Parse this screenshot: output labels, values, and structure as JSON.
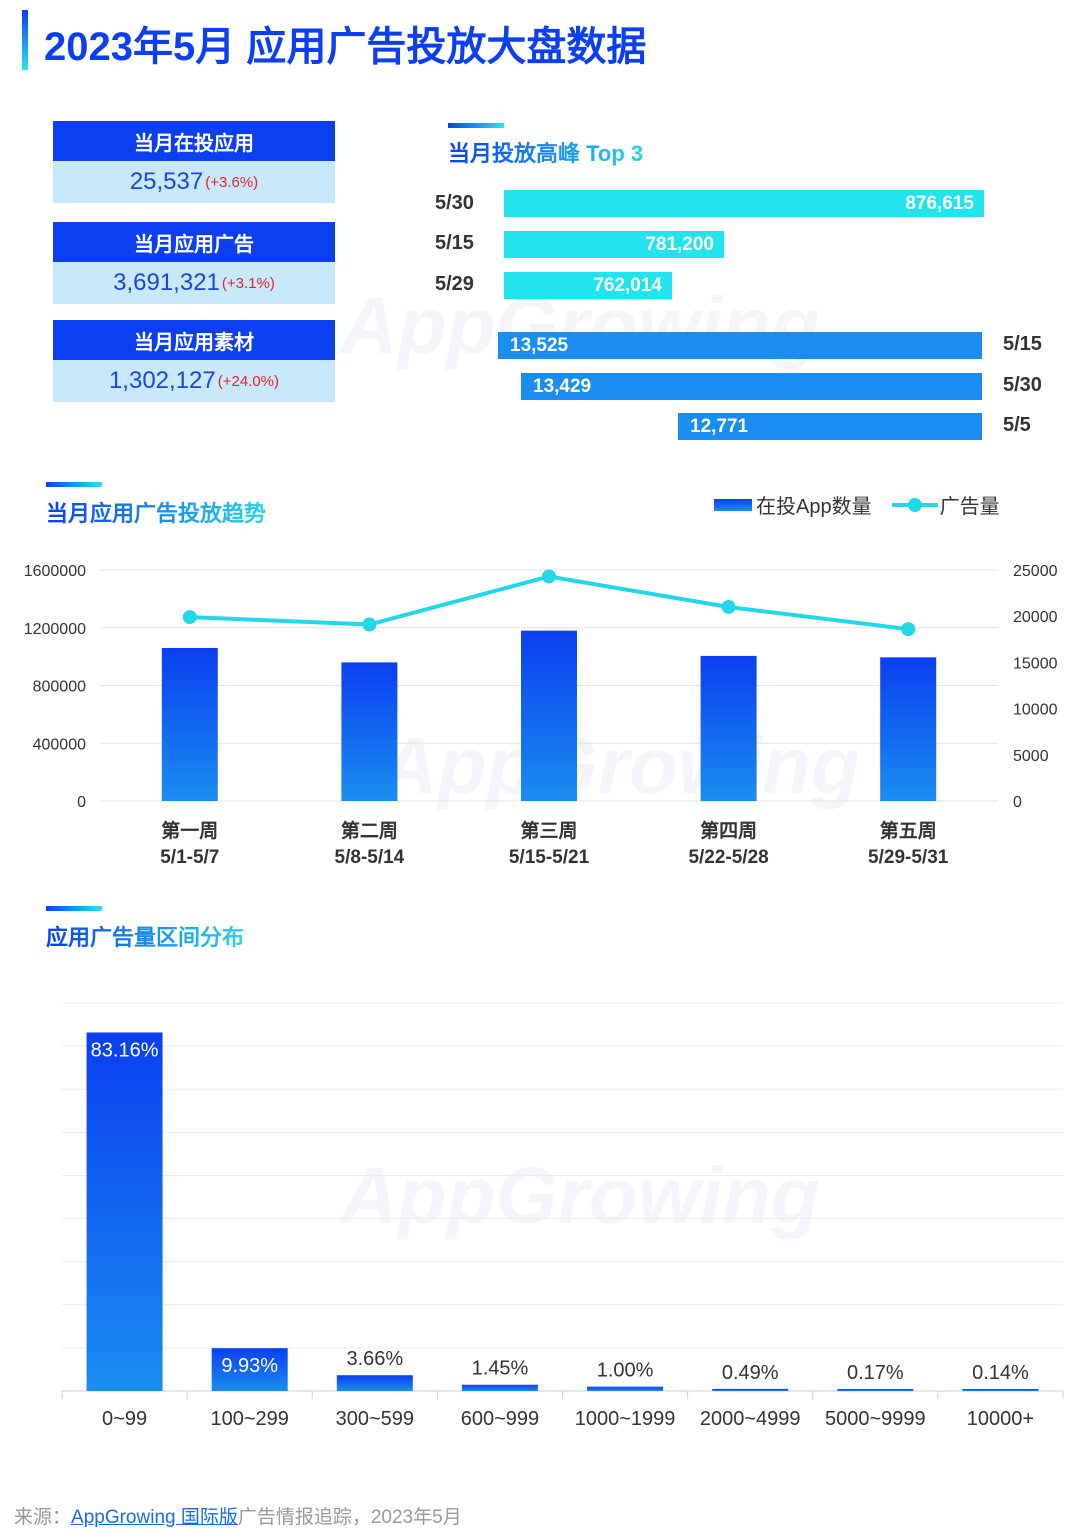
{
  "header": {
    "title": "2023年5月  应用广告投放大盘数据"
  },
  "colors": {
    "primary": "#0b3ff0",
    "bar_light": "#1a8df0",
    "cyan": "#22e4ec",
    "card_bg": "#c8e9fb",
    "increase": "#e8202a"
  },
  "stats": [
    {
      "label": "当月在投应用",
      "value": "25,537",
      "change": "(+3.6%)"
    },
    {
      "label": "当月应用广告",
      "value": "3,691,321",
      "change": "(+3.1%)"
    },
    {
      "label": "当月应用素材",
      "value": "1,302,127",
      "change": "(+24.0%)"
    }
  ],
  "watermark": "AppGrowing",
  "footer": {
    "prefix": "来源：",
    "link": "AppGrowing 国际版",
    "suffix": "广告情报追踪，2023年5月"
  },
  "chart_data": [
    {
      "type": "bar",
      "orientation": "horizontal",
      "title": "当月投放高峰 Top 3",
      "series": [
        {
          "categories": [
            "5/30",
            "5/15",
            "5/29"
          ],
          "values": [
            876615,
            781200,
            762014
          ],
          "labels": [
            "876,615",
            "781,200",
            "762,014"
          ],
          "color": "#22e4ec"
        },
        {
          "categories": [
            "5/15",
            "5/30",
            "5/5"
          ],
          "values": [
            13525,
            13429,
            12771
          ],
          "labels": [
            "13,525",
            "13,429",
            "12,771"
          ],
          "color": "#1a8df0"
        }
      ]
    },
    {
      "type": "bar",
      "title": "当月应用广告投放趋势",
      "categories": [
        "第一周",
        "第二周",
        "第三周",
        "第四周",
        "第五周"
      ],
      "category_ranges": [
        "5/1-5/7",
        "5/8-5/14",
        "5/15-5/21",
        "5/22-5/28",
        "5/29-5/31"
      ],
      "series": [
        {
          "name": "在投App数量",
          "type": "bar",
          "axis": "left",
          "values": [
            1060000,
            960000,
            1180000,
            1005000,
            995000
          ]
        },
        {
          "name": "广告量",
          "type": "line",
          "axis": "right",
          "values": [
            19900,
            19100,
            24300,
            21000,
            18600
          ]
        }
      ],
      "ylim_left": [
        0,
        1600000
      ],
      "ylim_right": [
        0,
        25000
      ],
      "yticks_left": [
        "0",
        "400000",
        "800000",
        "1200000",
        "1600000"
      ],
      "yticks_right": [
        "0",
        "5000",
        "10000",
        "15000",
        "20000",
        "25000"
      ],
      "legend_position": "top-right",
      "grid": true
    },
    {
      "type": "bar",
      "title": "应用广告量区间分布",
      "categories": [
        "0~99",
        "100~299",
        "300~599",
        "600~999",
        "1000~1999",
        "2000~4999",
        "5000~9999",
        "10000+"
      ],
      "values": [
        83.16,
        9.93,
        3.66,
        1.45,
        1.0,
        0.49,
        0.17,
        0.14
      ],
      "labels": [
        "83.16%",
        "9.93%",
        "3.66%",
        "1.45%",
        "1.00%",
        "0.49%",
        "0.17%",
        "0.14%"
      ],
      "ylim": [
        0,
        90
      ],
      "grid": true
    }
  ]
}
